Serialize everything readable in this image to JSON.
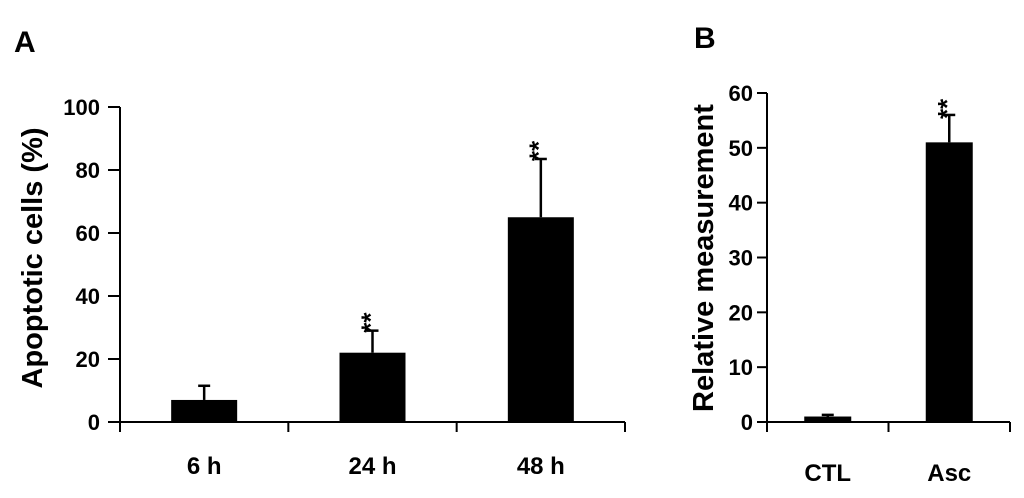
{
  "chart_data": [
    {
      "type": "bar",
      "panel": "A",
      "categories": [
        "6 h",
        "24 h",
        "48 h"
      ],
      "values": [
        7,
        22,
        65
      ],
      "error": [
        4.5,
        7,
        18.5
      ],
      "significance": [
        "",
        "**",
        "**"
      ],
      "ylabel": "Apoptotic cells (%)",
      "xlabel": "",
      "ylim": [
        0,
        100
      ],
      "yticks": [
        0,
        20,
        40,
        60,
        80,
        100
      ],
      "bar_color": "#000000",
      "grid": false,
      "legend": "none"
    },
    {
      "type": "bar",
      "panel": "B",
      "categories": [
        "CTL",
        "Asc"
      ],
      "values": [
        1,
        51
      ],
      "error": [
        0.3,
        5
      ],
      "significance": [
        "",
        "**"
      ],
      "ylabel": "Relative measurement",
      "xlabel": "",
      "ylim": [
        0,
        60
      ],
      "yticks": [
        0,
        10,
        20,
        30,
        40,
        50,
        60
      ],
      "bar_color": "#000000",
      "grid": false,
      "legend": "none"
    }
  ]
}
